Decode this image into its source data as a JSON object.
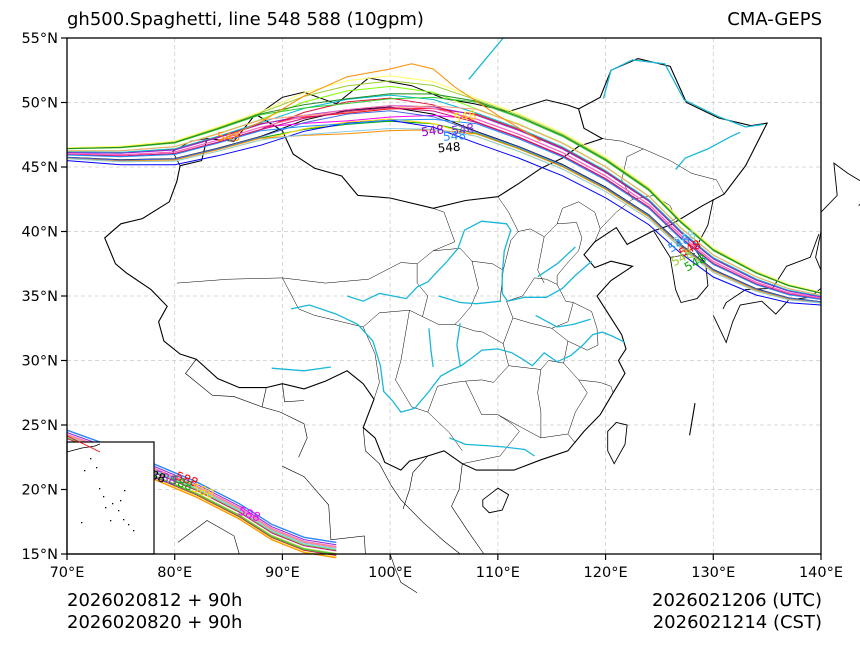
{
  "title_left": "gh500.Spaghetti, line 548 588 (10gpm)",
  "title_right": "CMA-GEPS",
  "footer": {
    "init_1": "2026020812 + 90h",
    "init_2": "2026020820 + 90h",
    "valid_utc": "2026021206 (UTC)",
    "valid_cst": "2026021214 (CST)"
  },
  "axes": {
    "lon_range": [
      70,
      140
    ],
    "lat_range": [
      15,
      55
    ],
    "lon_ticks": [
      "70°E",
      "80°E",
      "90°E",
      "100°E",
      "110°E",
      "120°E",
      "130°E",
      "140°E"
    ],
    "lat_ticks": [
      "15°N",
      "20°N",
      "25°N",
      "30°N",
      "35°N",
      "40°N",
      "45°N",
      "50°N",
      "55°N"
    ]
  },
  "contour_labels": [
    "548",
    "548",
    "548",
    "548",
    "548",
    "548",
    "548",
    "548",
    "548",
    "548",
    "548",
    "588",
    "588",
    "588",
    "588",
    "588",
    "588",
    "588"
  ],
  "colors": {
    "river": "#1ab8d8",
    "border": "#000000",
    "grid": "#cccccc",
    "members": [
      "#000000",
      "#ff0000",
      "#00aa00",
      "#0000ff",
      "#ff00ff",
      "#00bcd4",
      "#ffd700",
      "#ff8c00",
      "#7fff00",
      "#8a2be2",
      "#87ceeb",
      "#dc143c",
      "#32cd32",
      "#ff69b4",
      "#4169e1",
      "#ffa07a",
      "#9acd32",
      "#c71585",
      "#1e90ff",
      "#ffff66",
      "#228b22"
    ]
  }
}
